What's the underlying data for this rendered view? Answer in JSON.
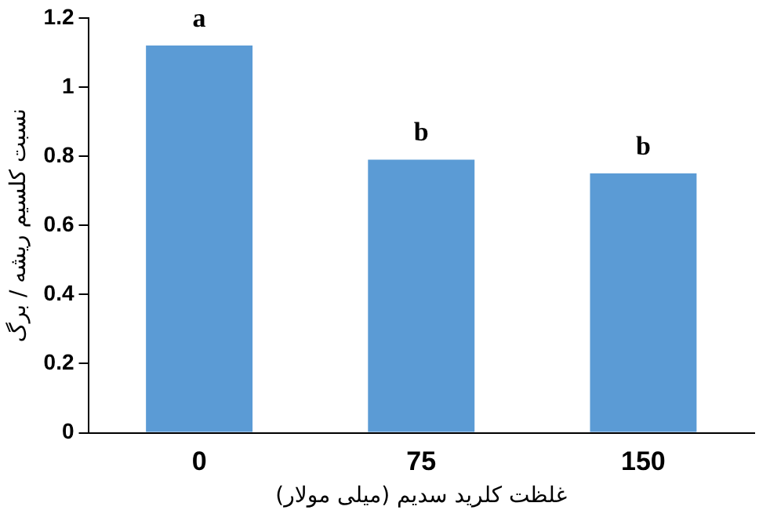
{
  "chart_data": {
    "type": "bar",
    "ylabel": "نسبت کلسیم ریشه / برگ",
    "xlabel": "غلظت کلرید سدیم (میلی مولار)",
    "categories": [
      "0",
      "75",
      "150"
    ],
    "values": [
      1.12,
      0.79,
      0.75
    ],
    "color": "#5b9bd5",
    "ylim": [
      0,
      1.2
    ],
    "yticks": [
      0,
      0.2,
      0.4,
      0.6,
      0.8,
      1,
      1.2
    ],
    "grid": false,
    "annotations": [
      {
        "text": "a",
        "x": "0",
        "y": 1.12
      },
      {
        "text": "b",
        "x": "75",
        "y": 0.79
      },
      {
        "text": "b",
        "x": "150",
        "y": 0.75
      }
    ]
  }
}
